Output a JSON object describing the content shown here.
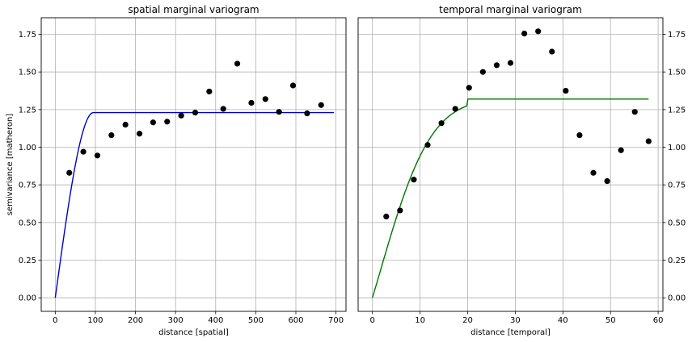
{
  "chart_data": [
    {
      "type": "scatter",
      "title": "spatial marginal variogram",
      "xlabel": "distance [spatial]",
      "ylabel": "semivariance [matheron]",
      "xlim": [
        -35,
        725
      ],
      "ylim": [
        -0.09,
        1.86
      ],
      "xticks": [
        0,
        100,
        200,
        300,
        400,
        500,
        600,
        700
      ],
      "yticks": [
        0.0,
        0.25,
        0.5,
        0.75,
        1.0,
        1.25,
        1.5,
        1.75
      ],
      "ytick_labels": [
        "0.00",
        "0.25",
        "0.50",
        "0.75",
        "1.00",
        "1.25",
        "1.50",
        "1.75"
      ],
      "ytick_side": "left",
      "grid": true,
      "points": {
        "color": "#000000",
        "x": [
          35,
          70,
          105,
          140,
          175,
          210,
          244,
          279,
          314,
          349,
          384,
          419,
          454,
          489,
          524,
          558,
          593,
          628,
          663
        ],
        "y": [
          0.83,
          0.97,
          0.945,
          1.08,
          1.15,
          1.09,
          1.165,
          1.17,
          1.21,
          1.23,
          1.37,
          1.255,
          1.555,
          1.295,
          1.32,
          1.235,
          1.41,
          1.225,
          1.28
        ]
      },
      "model": {
        "color": "#0000cc",
        "kind": "spherical",
        "range": 95,
        "sill": 1.23,
        "xmax": 695
      }
    },
    {
      "type": "scatter",
      "title": "temporal marginal variogram",
      "xlabel": "distance [temporal]",
      "ylabel": "",
      "xlim": [
        -3,
        61
      ],
      "ylim": [
        -0.09,
        1.86
      ],
      "xticks": [
        0,
        10,
        20,
        30,
        40,
        50,
        60
      ],
      "yticks": [
        0.0,
        0.25,
        0.5,
        0.75,
        1.0,
        1.25,
        1.5,
        1.75
      ],
      "ytick_labels": [
        "0.00",
        "0.25",
        "0.50",
        "0.75",
        "1.00",
        "1.25",
        "1.50",
        "1.75"
      ],
      "ytick_side": "right",
      "grid": true,
      "points": {
        "color": "#000000",
        "x": [
          2.9,
          5.8,
          8.7,
          11.6,
          14.5,
          17.4,
          20.3,
          23.2,
          26.1,
          29.0,
          31.9,
          34.8,
          37.7,
          40.6,
          43.5,
          46.4,
          49.3,
          52.2,
          55.1,
          58.0
        ],
        "y": [
          0.54,
          0.58,
          0.785,
          1.015,
          1.16,
          1.255,
          1.395,
          1.5,
          1.545,
          1.56,
          1.755,
          1.77,
          1.635,
          1.375,
          1.08,
          0.83,
          0.775,
          0.98,
          1.235,
          1.04
        ]
      },
      "model": {
        "color": "#007700",
        "kind": "gaussian",
        "range": 20,
        "sill": 1.32,
        "xmax": 58
      }
    }
  ]
}
